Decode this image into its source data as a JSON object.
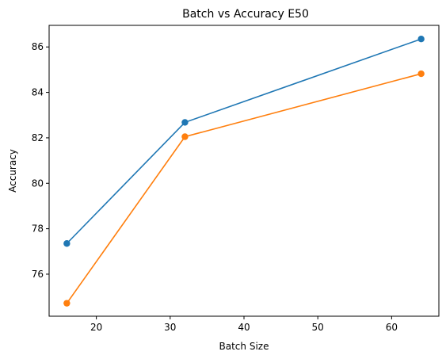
{
  "chart_data": {
    "type": "line",
    "title": "Batch vs Accuracy E50",
    "xlabel": "Batch Size",
    "ylabel": "Accuracy",
    "xlim": [
      13.6,
      66.4
    ],
    "ylim": [
      74.15,
      86.95
    ],
    "xticks": [
      20,
      30,
      40,
      50,
      60
    ],
    "yticks": [
      76,
      78,
      80,
      82,
      84,
      86
    ],
    "x": [
      16,
      32,
      64
    ],
    "grid": false,
    "markers": true,
    "series": [
      {
        "values": [
          77.35,
          82.68,
          86.35
        ],
        "color": "#1f77b4"
      },
      {
        "values": [
          74.72,
          82.05,
          84.82
        ],
        "color": "#ff7f0e"
      }
    ]
  }
}
